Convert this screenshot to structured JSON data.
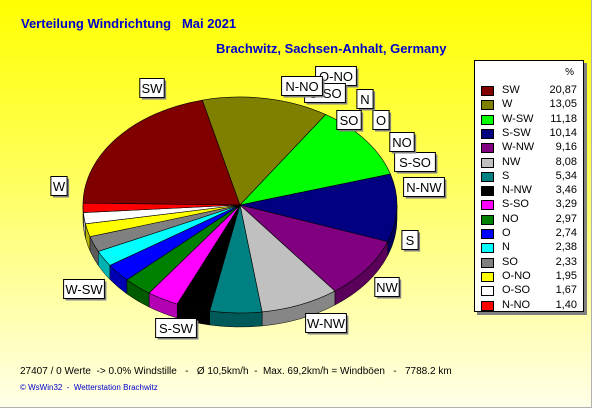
{
  "header": {
    "title": "Verteilung Windrichtung",
    "period": "Mai 2021",
    "location": "Brachwitz, Sachsen-Anhalt, Germany"
  },
  "legend": {
    "percent_header": "%"
  },
  "chart_data": {
    "type": "pie",
    "title": "Verteilung Windrichtung   Mai 2021",
    "subtitle": "Brachwitz, Sachsen-Anhalt, Germany",
    "unit": "%",
    "slices": [
      {
        "label": "SW",
        "value": 20.87,
        "display": "20,87",
        "color": "#800000"
      },
      {
        "label": "W",
        "value": 13.05,
        "display": "13,05",
        "color": "#808000"
      },
      {
        "label": "W-SW",
        "value": 11.18,
        "display": "11,18",
        "color": "#00ff00"
      },
      {
        "label": "S-SW",
        "value": 10.14,
        "display": "10,14",
        "color": "#000080"
      },
      {
        "label": "W-NW",
        "value": 9.16,
        "display": "9,16",
        "color": "#800080"
      },
      {
        "label": "NW",
        "value": 8.08,
        "display": "8,08",
        "color": "#c0c0c0"
      },
      {
        "label": "S",
        "value": 5.34,
        "display": "5,34",
        "color": "#008080"
      },
      {
        "label": "N-NW",
        "value": 3.46,
        "display": "3,46",
        "color": "#000000"
      },
      {
        "label": "S-SO",
        "value": 3.29,
        "display": "3,29",
        "color": "#ff00ff"
      },
      {
        "label": "NO",
        "value": 2.97,
        "display": "2,97",
        "color": "#008000"
      },
      {
        "label": "O",
        "value": 2.74,
        "display": "2,74",
        "color": "#0000ff"
      },
      {
        "label": "N",
        "value": 2.38,
        "display": "2,38",
        "color": "#00ffff"
      },
      {
        "label": "SO",
        "value": 2.33,
        "display": "2,33",
        "color": "#808080"
      },
      {
        "label": "O-NO",
        "value": 1.95,
        "display": "1,95",
        "color": "#ffff00"
      },
      {
        "label": "O-SO",
        "value": 1.67,
        "display": "1,67",
        "color": "#ffffff"
      },
      {
        "label": "N-NO",
        "value": 1.4,
        "display": "1,40",
        "color": "#ff0000"
      }
    ],
    "legend_position": "right"
  },
  "footer": {
    "stats": "27407 / 0 Werte  -> 0.0% Windstille   -   Ø 10,5km/h  -  Max. 69,2km/h = Windböen   -   7788.2 km",
    "credit": "© WsWin32  -  Wetterstation Brachwitz"
  }
}
